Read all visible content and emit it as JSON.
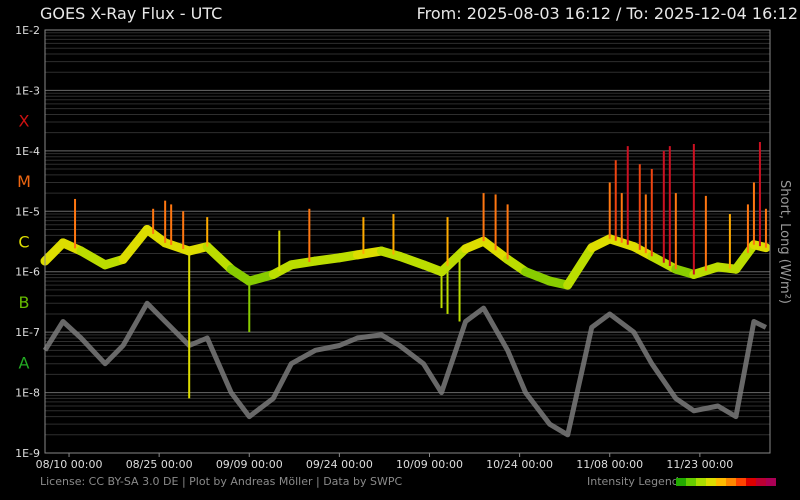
{
  "header": {
    "title": "GOES X-Ray Flux - UTC",
    "from_label": "From:",
    "from_value": "2025-08-03 16:12",
    "separator": "/",
    "to_label": "To:",
    "to_value": "2025-12-04 16:12"
  },
  "footer": {
    "license_text": "License: CC BY-SA 3.0 DE | Plot by Andreas Möller | Data by SWPC",
    "legend_label": "Intensity Legend",
    "legend_colors": [
      "#22aa00",
      "#66cc00",
      "#aadd00",
      "#dddd00",
      "#ffbb00",
      "#ff8800",
      "#ff4400",
      "#dd0000",
      "#bb0033",
      "#aa0055"
    ]
  },
  "chart_data": {
    "type": "line",
    "title": "GOES X-Ray Flux - UTC",
    "ylabel": "Short, Long (W/m²)",
    "y_scale": "log",
    "ylim": [
      1e-09,
      0.01
    ],
    "y_ticks": [
      "1E-2",
      "1E-3",
      "1E-4",
      "1E-5",
      "1E-6",
      "1E-7",
      "1E-8",
      "1E-9"
    ],
    "flare_classes": [
      {
        "label": "X",
        "value": 0.000316,
        "color": "#cc1111"
      },
      {
        "label": "M",
        "value": 3.16e-05,
        "color": "#ee6611"
      },
      {
        "label": "C",
        "value": 3.16e-06,
        "color": "#dddd00"
      },
      {
        "label": "B",
        "value": 3.16e-07,
        "color": "#66bb00"
      },
      {
        "label": "A",
        "value": 3.16e-08,
        "color": "#22aa22"
      }
    ],
    "xlim": [
      "2025-08-06",
      "2025-12-04"
    ],
    "x_ticks": [
      {
        "date": "2025-08-10",
        "label": "08/10 00:00"
      },
      {
        "date": "2025-08-25",
        "label": "08/25 00:00"
      },
      {
        "date": "2025-09-09",
        "label": "09/09 00:00"
      },
      {
        "date": "2025-09-24",
        "label": "09/24 00:00"
      },
      {
        "date": "2025-10-09",
        "label": "10/09 00:00"
      },
      {
        "date": "2025-10-24",
        "label": "10/24 00:00"
      },
      {
        "date": "2025-11-08",
        "label": "11/08 00:00"
      },
      {
        "date": "2025-11-23",
        "label": "11/23 00:00"
      }
    ],
    "grid": true,
    "series": [
      {
        "name": "Long",
        "color": "gradient by intensity",
        "x": [
          "2025-08-06",
          "2025-08-09",
          "2025-08-12",
          "2025-08-16",
          "2025-08-19",
          "2025-08-23",
          "2025-08-26",
          "2025-08-30",
          "2025-09-02",
          "2025-09-06",
          "2025-09-09",
          "2025-09-13",
          "2025-09-16",
          "2025-09-20",
          "2025-09-24",
          "2025-09-27",
          "2025-10-01",
          "2025-10-04",
          "2025-10-08",
          "2025-10-11",
          "2025-10-15",
          "2025-10-18",
          "2025-10-22",
          "2025-10-25",
          "2025-10-29",
          "2025-11-01",
          "2025-11-05",
          "2025-11-08",
          "2025-11-12",
          "2025-11-15",
          "2025-11-19",
          "2025-11-22",
          "2025-11-26",
          "2025-11-29",
          "2025-12-02",
          "2025-12-04"
        ],
        "y": [
          1.5e-06,
          3e-06,
          2.2e-06,
          1.3e-06,
          1.6e-06,
          5e-06,
          3e-06,
          2.2e-06,
          2.6e-06,
          1.1e-06,
          7e-07,
          9e-07,
          1.3e-06,
          1.5e-06,
          1.7e-06,
          1.9e-06,
          2.2e-06,
          1.8e-06,
          1.3e-06,
          1e-06,
          2.4e-06,
          3.2e-06,
          1.6e-06,
          1e-06,
          7e-07,
          6e-07,
          2.5e-06,
          3.5e-06,
          2.6e-06,
          1.8e-06,
          1.1e-06,
          9e-07,
          1.2e-06,
          1.1e-06,
          2.8e-06,
          2.5e-06
        ]
      },
      {
        "name": "Short",
        "color": "#7a7a7a",
        "x": [
          "2025-08-06",
          "2025-08-09",
          "2025-08-12",
          "2025-08-16",
          "2025-08-19",
          "2025-08-23",
          "2025-08-26",
          "2025-08-30",
          "2025-09-02",
          "2025-09-06",
          "2025-09-09",
          "2025-09-13",
          "2025-09-16",
          "2025-09-20",
          "2025-09-24",
          "2025-09-27",
          "2025-10-01",
          "2025-10-04",
          "2025-10-08",
          "2025-10-11",
          "2025-10-15",
          "2025-10-18",
          "2025-10-22",
          "2025-10-25",
          "2025-10-29",
          "2025-11-01",
          "2025-11-05",
          "2025-11-08",
          "2025-11-12",
          "2025-11-15",
          "2025-11-19",
          "2025-11-22",
          "2025-11-26",
          "2025-11-29",
          "2025-12-02",
          "2025-12-04"
        ],
        "y": [
          5e-08,
          1.5e-07,
          8e-08,
          3e-08,
          6e-08,
          3e-07,
          1.5e-07,
          6e-08,
          8e-08,
          1e-08,
          4e-09,
          8e-09,
          3e-08,
          5e-08,
          6e-08,
          8e-08,
          9e-08,
          6e-08,
          3e-08,
          1e-08,
          1.5e-07,
          2.5e-07,
          5e-08,
          1e-08,
          3e-09,
          2e-09,
          1.2e-07,
          2e-07,
          1e-07,
          3e-08,
          8e-09,
          5e-09,
          6e-09,
          4e-09,
          1.5e-07,
          1.2e-07
        ]
      }
    ],
    "peaks": [
      {
        "date": "2025-08-11",
        "value": 1.6e-05
      },
      {
        "date": "2025-08-24",
        "value": 1.1e-05
      },
      {
        "date": "2025-08-26",
        "value": 1.5e-05
      },
      {
        "date": "2025-08-27",
        "value": 1.3e-05
      },
      {
        "date": "2025-08-29",
        "value": 1e-05
      },
      {
        "date": "2025-09-02",
        "value": 8e-06
      },
      {
        "date": "2025-09-14",
        "value": 4.8e-06
      },
      {
        "date": "2025-09-19",
        "value": 1.1e-05
      },
      {
        "date": "2025-09-28",
        "value": 8e-06
      },
      {
        "date": "2025-10-03",
        "value": 9e-06
      },
      {
        "date": "2025-10-12",
        "value": 8e-06
      },
      {
        "date": "2025-10-18",
        "value": 2e-05
      },
      {
        "date": "2025-10-20",
        "value": 1.9e-05
      },
      {
        "date": "2025-10-22",
        "value": 1.3e-05
      },
      {
        "date": "2025-11-08",
        "value": 3e-05
      },
      {
        "date": "2025-11-09",
        "value": 7e-05
      },
      {
        "date": "2025-11-10",
        "value": 2e-05
      },
      {
        "date": "2025-11-11",
        "value": 0.00012
      },
      {
        "date": "2025-11-13",
        "value": 6e-05
      },
      {
        "date": "2025-11-14",
        "value": 1.9e-05
      },
      {
        "date": "2025-11-15",
        "value": 5e-05
      },
      {
        "date": "2025-11-17",
        "value": 0.0001
      },
      {
        "date": "2025-11-18",
        "value": 0.00012
      },
      {
        "date": "2025-11-19",
        "value": 2e-05
      },
      {
        "date": "2025-11-22",
        "value": 0.00013
      },
      {
        "date": "2025-11-24",
        "value": 1.8e-05
      },
      {
        "date": "2025-11-28",
        "value": 9e-06
      },
      {
        "date": "2025-12-01",
        "value": 1.3e-05
      },
      {
        "date": "2025-12-02",
        "value": 3e-05
      },
      {
        "date": "2025-12-03",
        "value": 0.00014
      },
      {
        "date": "2025-12-04",
        "value": 1.1e-05
      }
    ],
    "dips": [
      {
        "date": "2025-08-30",
        "value": 8e-09
      },
      {
        "date": "2025-09-09",
        "value": 1e-07
      },
      {
        "date": "2025-10-11",
        "value": 2.5e-07
      },
      {
        "date": "2025-10-12",
        "value": 2e-07
      },
      {
        "date": "2025-10-14",
        "value": 1.5e-07
      }
    ]
  }
}
